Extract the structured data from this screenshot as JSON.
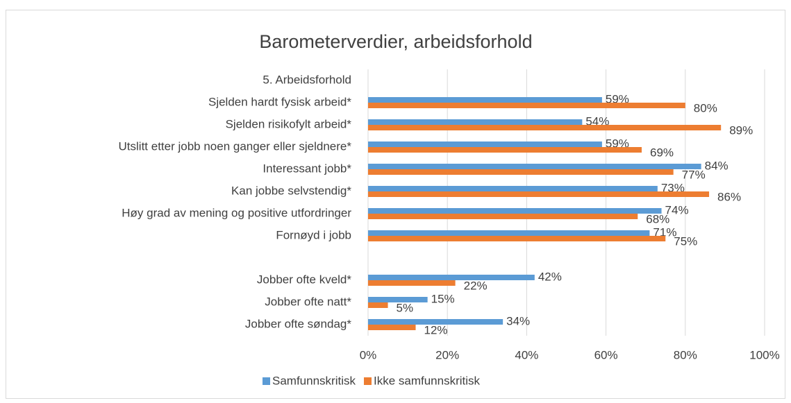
{
  "chart_data": {
    "type": "bar",
    "orientation": "horizontal",
    "title": "Barometerverdier, arbeidsforhold",
    "categories": [
      "5. Arbeidsforhold",
      "Sjelden hardt fysisk arbeid*",
      "Sjelden risikofylt arbeid*",
      "Utslitt etter jobb noen ganger eller sjeldnere*",
      "Interessant jobb*",
      "Kan jobbe selvstendig*",
      "Høy grad av mening og positive utfordringer",
      "Fornøyd i jobb",
      null,
      "Jobber ofte kveld*",
      "Jobber ofte natt*",
      "Jobber ofte søndag*"
    ],
    "series": [
      {
        "name": "Samfunnskritisk",
        "color": "#5b9bd5",
        "values": [
          null,
          59,
          54,
          59,
          84,
          73,
          74,
          71,
          null,
          42,
          15,
          34
        ],
        "value_labels": [
          null,
          "59%",
          "54%",
          "59%",
          "84%",
          "73%",
          "74%",
          "71%",
          null,
          "42%",
          "15%",
          "34%"
        ]
      },
      {
        "name": "Ikke samfunnskritisk",
        "color": "#ed7d31",
        "values": [
          null,
          80,
          89,
          69,
          77,
          86,
          68,
          75,
          null,
          22,
          5,
          12
        ],
        "value_labels": [
          null,
          "80%",
          "89%",
          "69%",
          "77%",
          "86%",
          "68%",
          "75%",
          null,
          "22%",
          "5%",
          "12%"
        ]
      }
    ],
    "xlim": [
      0,
      100
    ],
    "xticks": [
      {
        "value": 0,
        "label": "0%"
      },
      {
        "value": 20,
        "label": "20%"
      },
      {
        "value": 40,
        "label": "40%"
      },
      {
        "value": 60,
        "label": "60%"
      },
      {
        "value": 80,
        "label": "80%"
      },
      {
        "value": 100,
        "label": "100%"
      }
    ],
    "grid": true,
    "legend": "bottom"
  }
}
